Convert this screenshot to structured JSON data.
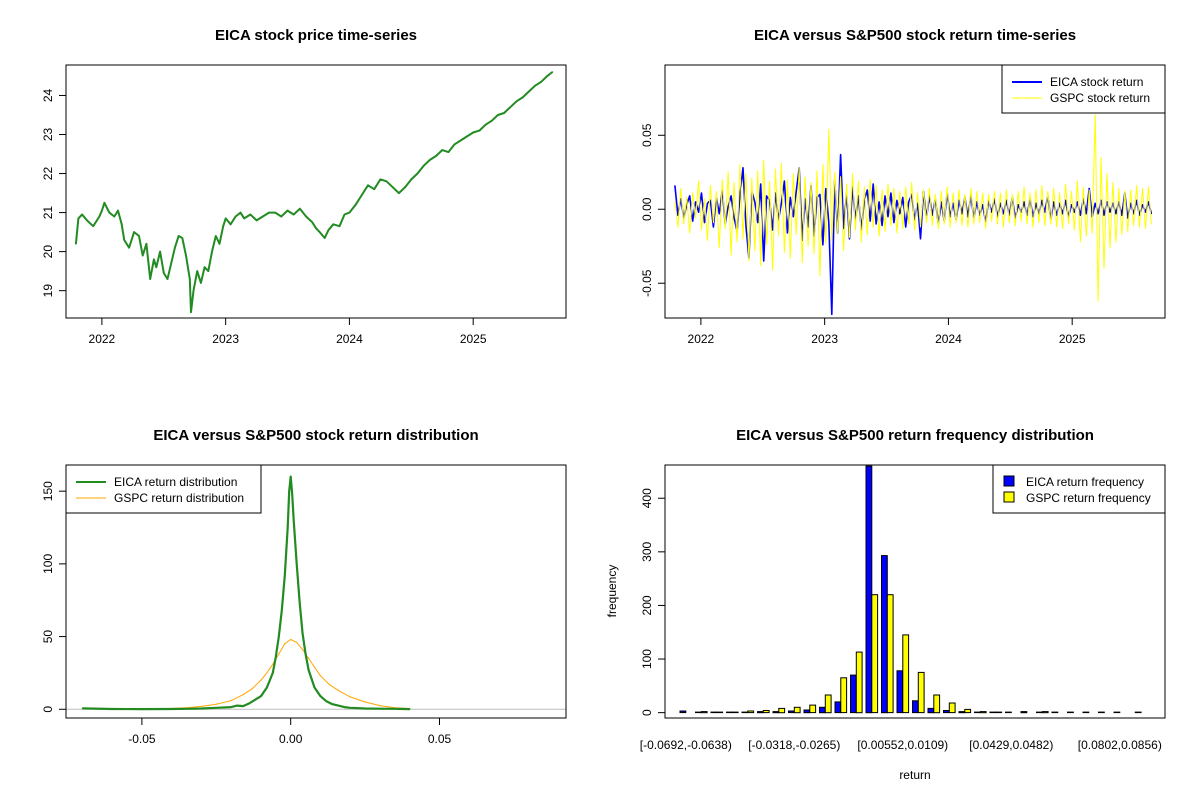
{
  "chart_data": [
    {
      "id": "p1",
      "type": "line",
      "title": "EICA stock price time-series",
      "xlabel": "",
      "ylabel": "",
      "xlim": [
        2021.71,
        2025.75
      ],
      "ylim": [
        18.3,
        24.78
      ],
      "x_ticks": [
        2022,
        2023,
        2024,
        2025
      ],
      "x_tick_labels": [
        "2022",
        "2023",
        "2024",
        "2025"
      ],
      "y_ticks": [
        19,
        20,
        21,
        22,
        23,
        24
      ],
      "y_tick_labels": [
        "19",
        "20",
        "21",
        "22",
        "23",
        "24"
      ],
      "color": "#228B22",
      "series": [
        {
          "name": "EICA",
          "x": [
            2021.79,
            2021.81,
            2021.84,
            2021.88,
            2021.93,
            2021.98,
            2022.0,
            2022.02,
            2022.06,
            2022.1,
            2022.13,
            2022.16,
            2022.18,
            2022.22,
            2022.26,
            2022.3,
            2022.33,
            2022.36,
            2022.39,
            2022.42,
            2022.44,
            2022.47,
            2022.5,
            2022.53,
            2022.56,
            2022.59,
            2022.62,
            2022.65,
            2022.68,
            2022.71,
            2022.72,
            2022.74,
            2022.77,
            2022.8,
            2022.83,
            2022.86,
            2022.89,
            2022.92,
            2022.95,
            2022.98,
            2023.0,
            2023.04,
            2023.08,
            2023.12,
            2023.15,
            2023.2,
            2023.25,
            2023.3,
            2023.35,
            2023.4,
            2023.45,
            2023.5,
            2023.55,
            2023.6,
            2023.65,
            2023.7,
            2023.73,
            2023.76,
            2023.8,
            2023.83,
            2023.87,
            2023.92,
            2023.96,
            2024.0,
            2024.05,
            2024.1,
            2024.15,
            2024.2,
            2024.25,
            2024.3,
            2024.35,
            2024.4,
            2024.45,
            2024.5,
            2024.55,
            2024.6,
            2024.65,
            2024.7,
            2024.75,
            2024.8,
            2024.85,
            2024.9,
            2024.95,
            2025.0,
            2025.05,
            2025.1,
            2025.15,
            2025.2,
            2025.25,
            2025.3,
            2025.35,
            2025.4,
            2025.45,
            2025.5,
            2025.55,
            2025.6,
            2025.64
          ],
          "y": [
            20.2,
            20.85,
            20.95,
            20.8,
            20.65,
            20.9,
            21.05,
            21.25,
            21.0,
            20.9,
            21.05,
            20.7,
            20.3,
            20.1,
            20.5,
            20.4,
            19.9,
            20.2,
            19.3,
            19.8,
            19.6,
            20.0,
            19.45,
            19.3,
            19.7,
            20.1,
            20.4,
            20.35,
            19.9,
            19.3,
            18.45,
            19.0,
            19.5,
            19.2,
            19.6,
            19.5,
            20.0,
            20.4,
            20.2,
            20.65,
            20.85,
            20.7,
            20.9,
            21.0,
            20.85,
            20.95,
            20.8,
            20.9,
            21.0,
            21.0,
            20.9,
            21.05,
            20.95,
            21.1,
            20.9,
            20.75,
            20.6,
            20.5,
            20.35,
            20.55,
            20.7,
            20.65,
            20.95,
            21.0,
            21.2,
            21.45,
            21.7,
            21.6,
            21.85,
            21.8,
            21.65,
            21.5,
            21.65,
            21.85,
            22.0,
            22.2,
            22.35,
            22.45,
            22.6,
            22.55,
            22.75,
            22.85,
            22.95,
            23.05,
            23.1,
            23.25,
            23.35,
            23.5,
            23.55,
            23.7,
            23.85,
            23.95,
            24.1,
            24.25,
            24.35,
            24.5,
            24.6
          ]
        }
      ]
    },
    {
      "id": "p2",
      "type": "line",
      "title": "EICA versus S&P500 stock return time-series",
      "xlim": [
        2021.71,
        2025.75
      ],
      "ylim": [
        -0.0735,
        0.0975
      ],
      "x_ticks": [
        2022,
        2023,
        2024,
        2025
      ],
      "x_tick_labels": [
        "2022",
        "2023",
        "2024",
        "2025"
      ],
      "y_ticks": [
        -0.05,
        0.0,
        0.05
      ],
      "y_tick_labels": [
        "-0.05",
        "0.00",
        "0.05"
      ],
      "legend_position": "top-right",
      "x_start": 2021.79,
      "x_end": 2025.64,
      "series": [
        {
          "name": "EICA stock return",
          "color": "#0000FF",
          "values": [
            0.016,
            -0.004,
            0.007,
            -0.006,
            0.003,
            0.009,
            -0.008,
            0.005,
            -0.002,
            0.011,
            -0.009,
            0.004,
            0.006,
            -0.012,
            0.008,
            -0.003,
            0.013,
            -0.01,
            0.002,
            0.009,
            -0.006,
            -0.015,
            0.01,
            0.028,
            -0.011,
            -0.033,
            0.012,
            0.005,
            -0.009,
            0.017,
            -0.035,
            0.009,
            0.006,
            -0.014,
            0.011,
            -0.007,
            0.004,
            0.019,
            -0.016,
            0.008,
            -0.005,
            0.012,
            0.028,
            -0.021,
            0.007,
            -0.012,
            0.016,
            -0.018,
            0.008,
            0.01,
            -0.024,
            0.014,
            -0.009,
            -0.071,
            0.02,
            -0.016,
            0.037,
            -0.013,
            0.011,
            -0.02,
            0.015,
            -0.007,
            0.009,
            -0.014,
            0.006,
            0.013,
            -0.008,
            0.017,
            -0.01,
            0.005,
            -0.011,
            0.009,
            -0.005,
            0.011,
            -0.009,
            0.006,
            -0.003,
            0.008,
            -0.012,
            0.005,
            0.01,
            -0.007,
            0.004,
            -0.02,
            0.012,
            -0.006,
            0.009,
            -0.004,
            0.007,
            -0.01,
            0.005,
            -0.008,
            0.011,
            -0.005,
            0.004,
            -0.007,
            0.006,
            -0.003,
            0.008,
            -0.005,
            0.009,
            -0.006,
            0.005,
            -0.004,
            0.003,
            -0.009,
            0.006,
            -0.002,
            0.007,
            -0.005,
            0.004,
            -0.003,
            0.006,
            -0.004,
            0.008,
            -0.006,
            0.003,
            -0.002,
            0.005,
            -0.004,
            0.007,
            -0.005,
            0.004,
            -0.003,
            0.006,
            -0.002,
            0.009,
            -0.007,
            0.005,
            -0.004,
            0.004,
            -0.003,
            0.006,
            -0.005,
            0.003,
            -0.002,
            0.005,
            -0.004,
            0.007,
            -0.003,
            0.014,
            -0.005,
            0.004,
            -0.003,
            0.006,
            -0.004,
            0.005,
            -0.002,
            0.004,
            -0.003,
            0.005,
            -0.004,
            0.011,
            -0.006,
            0.004,
            -0.003,
            0.006,
            -0.004,
            0.003,
            -0.002,
            0.005,
            -0.003
          ]
        },
        {
          "name": "GSPC stock return",
          "color": "#FFFF00",
          "values": [
            0.005,
            -0.012,
            0.014,
            -0.01,
            0.008,
            -0.016,
            0.011,
            -0.006,
            0.019,
            -0.014,
            0.007,
            -0.021,
            0.016,
            -0.009,
            0.012,
            -0.026,
            0.02,
            -0.013,
            0.025,
            -0.031,
            0.018,
            -0.022,
            0.03,
            -0.02,
            0.024,
            -0.035,
            0.021,
            -0.028,
            0.026,
            -0.038,
            0.033,
            -0.024,
            0.019,
            -0.041,
            0.027,
            -0.018,
            0.031,
            -0.029,
            0.02,
            -0.033,
            0.024,
            -0.017,
            0.028,
            -0.036,
            0.022,
            -0.025,
            0.018,
            -0.03,
            0.026,
            -0.045,
            0.03,
            -0.023,
            0.054,
            -0.021,
            0.025,
            -0.016,
            0.022,
            -0.028,
            0.017,
            -0.019,
            0.024,
            -0.014,
            0.019,
            -0.022,
            0.015,
            -0.017,
            0.02,
            -0.012,
            0.016,
            -0.018,
            0.013,
            -0.015,
            0.017,
            -0.011,
            0.014,
            -0.016,
            0.012,
            -0.013,
            0.015,
            -0.01,
            0.018,
            -0.014,
            0.011,
            -0.012,
            0.013,
            -0.009,
            0.014,
            -0.011,
            0.01,
            -0.013,
            0.012,
            -0.01,
            0.015,
            -0.012,
            0.011,
            -0.009,
            0.013,
            -0.011,
            0.01,
            -0.012,
            0.014,
            -0.01,
            0.012,
            -0.009,
            0.011,
            -0.013,
            0.01,
            -0.008,
            0.012,
            -0.01,
            0.011,
            -0.012,
            0.013,
            -0.009,
            0.01,
            -0.011,
            0.012,
            -0.008,
            0.015,
            -0.01,
            0.011,
            -0.012,
            0.013,
            -0.009,
            0.016,
            -0.011,
            0.012,
            -0.01,
            0.014,
            -0.012,
            0.011,
            -0.013,
            0.017,
            -0.01,
            0.012,
            -0.014,
            0.019,
            -0.022,
            0.015,
            -0.018,
            0.013,
            -0.016,
            0.064,
            -0.062,
            0.035,
            -0.04,
            0.024,
            -0.026,
            0.018,
            -0.022,
            0.014,
            -0.017,
            0.012,
            -0.015,
            0.013,
            -0.011,
            0.016,
            -0.012,
            0.014,
            -0.013,
            0.015,
            -0.01
          ]
        }
      ]
    },
    {
      "id": "p3",
      "type": "line",
      "title": "EICA versus S&P500 stock return distribution",
      "xlim": [
        -0.0755,
        0.0925
      ],
      "ylim": [
        -6,
        168
      ],
      "x_ticks": [
        -0.05,
        0.0,
        0.05
      ],
      "x_tick_labels": [
        "-0.05",
        "0.00",
        "0.05"
      ],
      "y_ticks": [
        0,
        50,
        100,
        150
      ],
      "y_tick_labels": [
        "0",
        "50",
        "100",
        "150"
      ],
      "legend_position": "top-left",
      "baseline": {
        "y": 0,
        "color": "#BEBEBE"
      },
      "series": [
        {
          "name": "EICA return distribution",
          "color": "#228B22",
          "x": [
            -0.07,
            -0.06,
            -0.05,
            -0.04,
            -0.035,
            -0.03,
            -0.025,
            -0.02,
            -0.018,
            -0.016,
            -0.014,
            -0.012,
            -0.01,
            -0.008,
            -0.006,
            -0.005,
            -0.004,
            -0.003,
            -0.002,
            -0.001,
            -0.0005,
            0.0,
            0.0005,
            0.001,
            0.002,
            0.003,
            0.004,
            0.005,
            0.006,
            0.008,
            0.01,
            0.012,
            0.014,
            0.016,
            0.018,
            0.02,
            0.025,
            0.03,
            0.035,
            0.038,
            0.04
          ],
          "y": [
            0.6,
            0.2,
            0.1,
            0.2,
            0.3,
            0.5,
            1.0,
            1.5,
            2.5,
            2.2,
            4.0,
            6.5,
            9.0,
            15.0,
            25.0,
            36.0,
            50.0,
            68.0,
            92.0,
            125.0,
            150.0,
            160.0,
            148.0,
            130.0,
            100.0,
            74.0,
            52.0,
            38.0,
            27.0,
            15.0,
            9.0,
            5.5,
            3.5,
            2.5,
            1.5,
            1.0,
            0.5,
            0.4,
            0.3,
            0.2,
            0.1
          ]
        },
        {
          "name": "GSPC return distribution",
          "color": "#FFA500",
          "x": [
            -0.045,
            -0.04,
            -0.035,
            -0.03,
            -0.025,
            -0.02,
            -0.016,
            -0.013,
            -0.01,
            -0.008,
            -0.006,
            -0.004,
            -0.002,
            0.0,
            0.002,
            0.004,
            0.006,
            0.008,
            0.01,
            0.013,
            0.016,
            0.02,
            0.025,
            0.03,
            0.035,
            0.04
          ],
          "y": [
            0.5,
            0.6,
            1.0,
            2.0,
            3.5,
            6.0,
            10.0,
            14.0,
            20.0,
            25.0,
            31.0,
            38.0,
            45.0,
            48.0,
            46.0,
            41.0,
            35.0,
            29.0,
            23.0,
            17.0,
            13.0,
            8.5,
            5.0,
            2.5,
            1.0,
            0.5
          ]
        }
      ]
    },
    {
      "id": "p4",
      "type": "bar",
      "title": "EICA versus S&P500 return frequency distribution",
      "xlabel": "return",
      "ylabel": "frequency",
      "ylim": [
        -10,
        462
      ],
      "y_ticks": [
        0,
        100,
        200,
        300,
        400
      ],
      "y_tick_labels": [
        "0",
        "100",
        "200",
        "300",
        "400"
      ],
      "legend_position": "top-right",
      "x_tick_labels": [
        {
          "index": 0,
          "label": "[-0.0692,-0.0638)"
        },
        {
          "index": 7,
          "label": "[-0.0318,-0.0265)"
        },
        {
          "index": 14,
          "label": "[0.00552,0.0109)"
        },
        {
          "index": 21,
          "label": "[0.0429,0.0482)"
        },
        {
          "index": 28,
          "label": "[0.0802,0.0856)"
        }
      ],
      "series": [
        {
          "name": "EICA return frequency",
          "color": "#0000FF",
          "values": [
            3,
            1,
            1,
            1,
            1,
            2,
            2,
            3,
            5,
            10,
            20,
            70,
            460,
            293,
            78,
            22,
            8,
            4,
            2,
            1,
            1,
            1,
            2,
            1,
            1,
            1,
            1,
            1,
            1,
            0
          ]
        },
        {
          "name": "GSPC return frequency",
          "color": "#FFFF00",
          "values": [
            0,
            2,
            1,
            1,
            3,
            4,
            8,
            10,
            14,
            33,
            65,
            113,
            220,
            220,
            145,
            75,
            33,
            18,
            6,
            2,
            1,
            0,
            0,
            2,
            0,
            0,
            0,
            0,
            0,
            1
          ]
        }
      ]
    }
  ]
}
